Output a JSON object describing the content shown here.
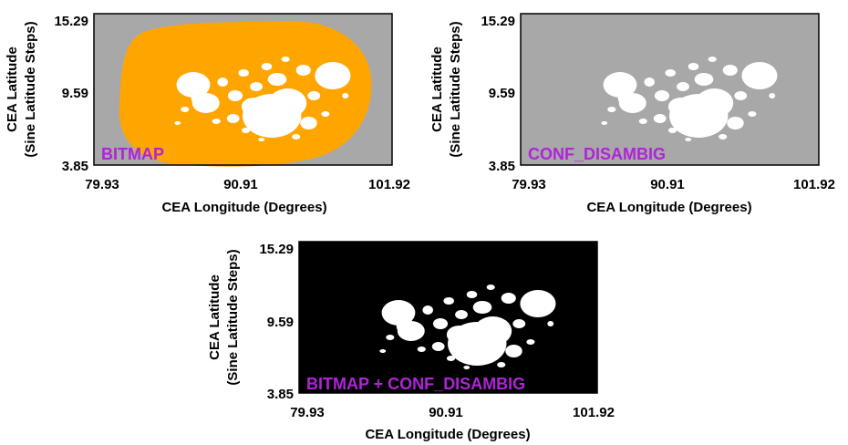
{
  "colors": {
    "quiet_background": "#a8a8a8",
    "bitmap_region": "#ffa500",
    "strong_field": "#ffffff",
    "combined_background": "#000000",
    "panel_label": "#b023d9",
    "frame": "#000000"
  },
  "axes": {
    "xlabel": "CEA Longitude (Degrees)",
    "ylabel_line1": "CEA Latitude",
    "ylabel_line2": "(Sine Latitude Steps)",
    "x_ticks": [
      "79.93",
      "90.91",
      "101.92"
    ],
    "y_ticks": [
      "15.29",
      "9.59",
      "3.85"
    ],
    "x_range": [
      79.93,
      101.92
    ],
    "y_range": [
      3.85,
      15.29
    ]
  },
  "panels": [
    {
      "id": "bitmap",
      "label": "BITMAP",
      "background": "gray",
      "overlay": "orange-region"
    },
    {
      "id": "conf_disambig",
      "label": "CONF_DISAMBIG",
      "background": "gray",
      "overlay": "none"
    },
    {
      "id": "combined",
      "label": "BITMAP + CONF_DISAMBIG",
      "background": "black",
      "overlay": "none"
    }
  ]
}
